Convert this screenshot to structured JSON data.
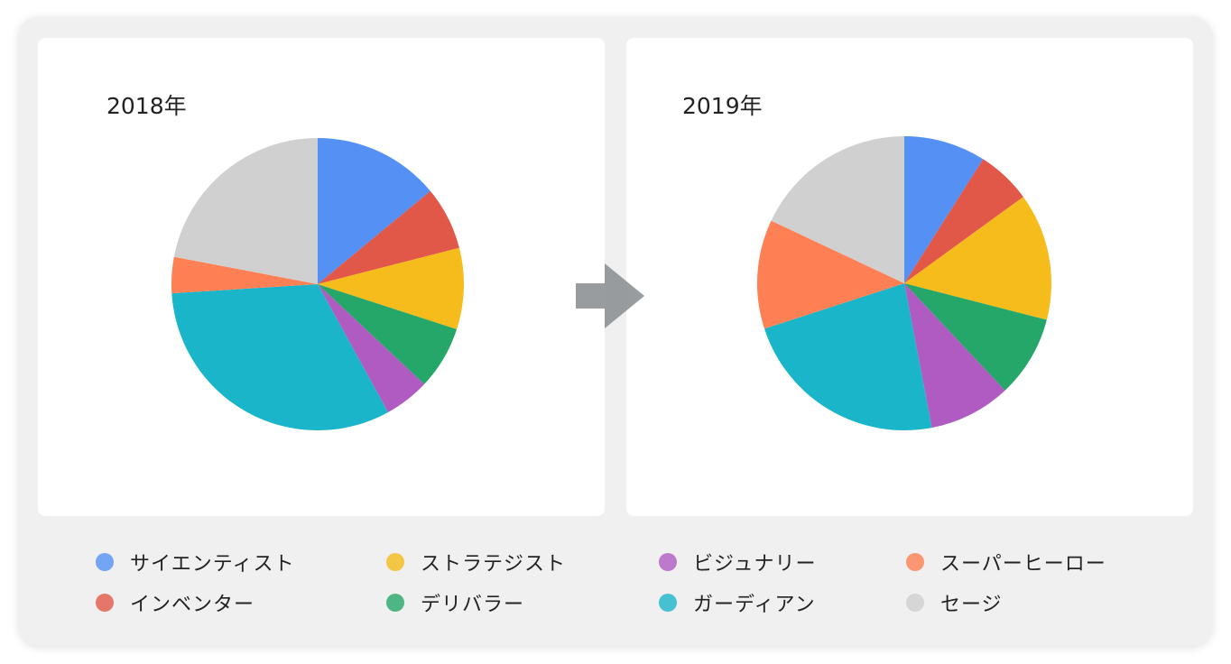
{
  "chart_data": [
    {
      "type": "pie",
      "title": "2018年",
      "categories": [
        "サイエンティスト",
        "インベンター",
        "ストラテジスト",
        "デリバラー",
        "ビジュナリー",
        "ガーディアン",
        "スーパーヒーロー",
        "セージ"
      ],
      "values": [
        14,
        7,
        9,
        7,
        5,
        32,
        4,
        22
      ],
      "unit": "%"
    },
    {
      "type": "pie",
      "title": "2019年",
      "categories": [
        "サイエンティスト",
        "インベンター",
        "ストラテジスト",
        "デリバラー",
        "ビジュナリー",
        "ガーディアン",
        "スーパーヒーロー",
        "セージ"
      ],
      "values": [
        9,
        6,
        14,
        9,
        9,
        23,
        12,
        18
      ],
      "unit": "%"
    }
  ],
  "colors": [
    "#5591F5",
    "#E15849",
    "#F5BC1C",
    "#25A769",
    "#B05BC2",
    "#1BB5C9",
    "#FE8054",
    "#D0D0D0"
  ],
  "legend": {
    "position": "bottom",
    "items": [
      "サイエンティスト",
      "インベンター",
      "ストラテジスト",
      "デリバラー",
      "ビジュナリー",
      "ガーディアン",
      "スーパーヒーロー",
      "セージ"
    ]
  },
  "arrow_icon": "arrow-right-icon"
}
